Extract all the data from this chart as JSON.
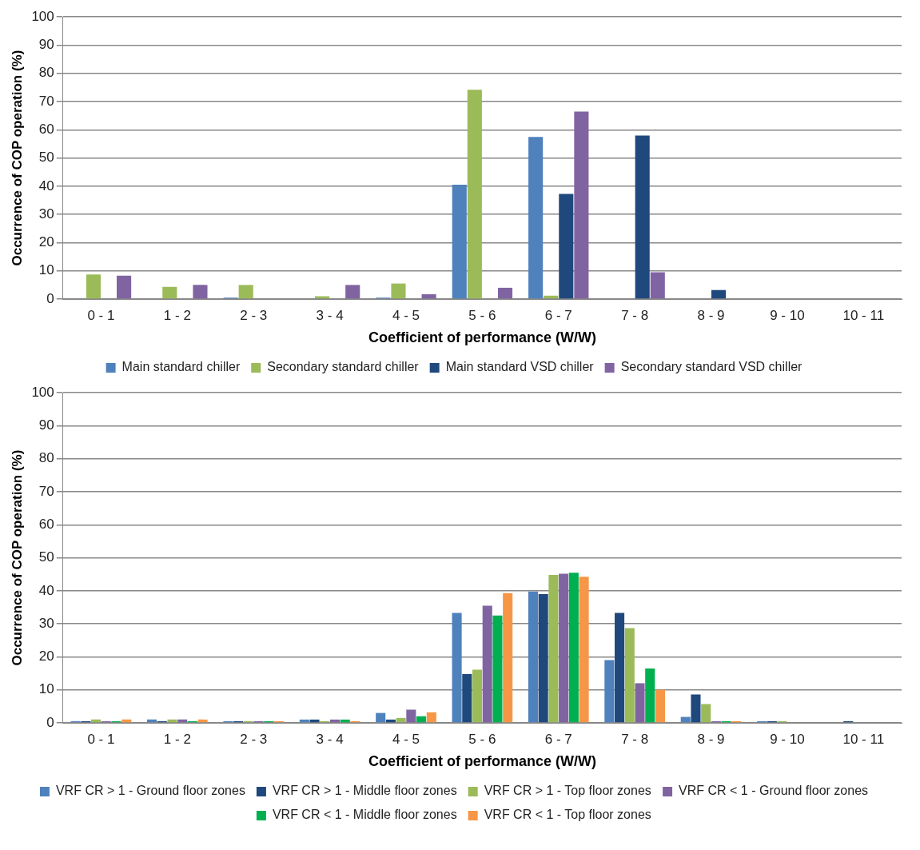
{
  "chart_data": [
    {
      "type": "bar",
      "xlabel": "Coefficient of performance (W/W)",
      "ylabel": "Occurrence of COP operation (%)",
      "categories": [
        "0 - 1",
        "1 - 2",
        "2 - 3",
        "3 - 4",
        "4 - 5",
        "5 - 6",
        "6 - 7",
        "7 - 8",
        "8 - 9",
        "9 - 10",
        "10 - 11"
      ],
      "series": [
        {
          "name": "Main standard chiller",
          "color": "#4f81bd",
          "values": [
            0,
            0,
            0.5,
            0,
            0.5,
            40.5,
            57.5,
            0,
            0,
            0,
            0
          ]
        },
        {
          "name": "Secondary standard chiller",
          "color": "#9bbb59",
          "values": [
            8.7,
            4.3,
            5,
            1,
            5.5,
            74.2,
            1.2,
            0,
            0,
            0,
            0
          ]
        },
        {
          "name": "Main standard VSD chiller",
          "color": "#1f497d",
          "values": [
            0,
            0,
            0,
            0,
            0,
            0,
            37.3,
            58,
            3.2,
            0,
            0
          ]
        },
        {
          "name": "Secondary standard VSD chiller",
          "color": "#8064a2",
          "values": [
            8.3,
            5,
            0,
            5,
            1.7,
            4,
            66.5,
            9.5,
            0,
            0,
            0
          ]
        }
      ],
      "ylim": [
        0,
        100
      ],
      "yticks": [
        0,
        10,
        20,
        30,
        40,
        50,
        60,
        70,
        80,
        90,
        100
      ],
      "grid": "y",
      "legend": "bottom"
    },
    {
      "type": "bar",
      "xlabel": "Coefficient of performance (W/W)",
      "ylabel": "Occurrence of COP operation (%)",
      "categories": [
        "0 - 1",
        "1 - 2",
        "2 - 3",
        "3 - 4",
        "4 - 5",
        "5 - 6",
        "6 - 7",
        "7 - 8",
        "8 - 9",
        "9 - 10",
        "10 - 11"
      ],
      "series": [
        {
          "name": "VRF CR > 1 - Ground floor zones",
          "color": "#4f81bd",
          "values": [
            0.5,
            1,
            0.5,
            1,
            3,
            33.3,
            39.8,
            19,
            1.8,
            0.5,
            0
          ]
        },
        {
          "name": "VRF CR > 1 - Middle floor zones",
          "color": "#1f497d",
          "values": [
            0.5,
            0.5,
            0.5,
            1,
            1,
            14.8,
            39,
            33.3,
            8.6,
            0.5,
            0.5
          ]
        },
        {
          "name": "VRF CR > 1 - Top floor zones",
          "color": "#9bbb59",
          "values": [
            1,
            1,
            0.5,
            0.5,
            1.5,
            16.1,
            44.8,
            28.7,
            5.7,
            0.5,
            0
          ]
        },
        {
          "name": "VRF CR < 1 - Ground floor zones",
          "color": "#8064a2",
          "values": [
            0.5,
            1,
            0.5,
            1,
            4,
            35.5,
            45.2,
            12,
            0.5,
            0,
            0
          ]
        },
        {
          "name": "VRF CR < 1 - Middle floor zones",
          "color": "#00b050",
          "values": [
            0.5,
            0.5,
            0.5,
            1,
            2,
            32.5,
            45.5,
            16.5,
            0.5,
            0,
            0
          ]
        },
        {
          "name": "VRF CR < 1 - Top floor zones",
          "color": "#f79646",
          "values": [
            1,
            1,
            0.5,
            0.5,
            3.2,
            39.3,
            44.3,
            10,
            0.5,
            0,
            0
          ]
        }
      ],
      "ylim": [
        0,
        100
      ],
      "yticks": [
        0,
        10,
        20,
        30,
        40,
        50,
        60,
        70,
        80,
        90,
        100
      ],
      "grid": "y",
      "legend": "bottom"
    }
  ]
}
